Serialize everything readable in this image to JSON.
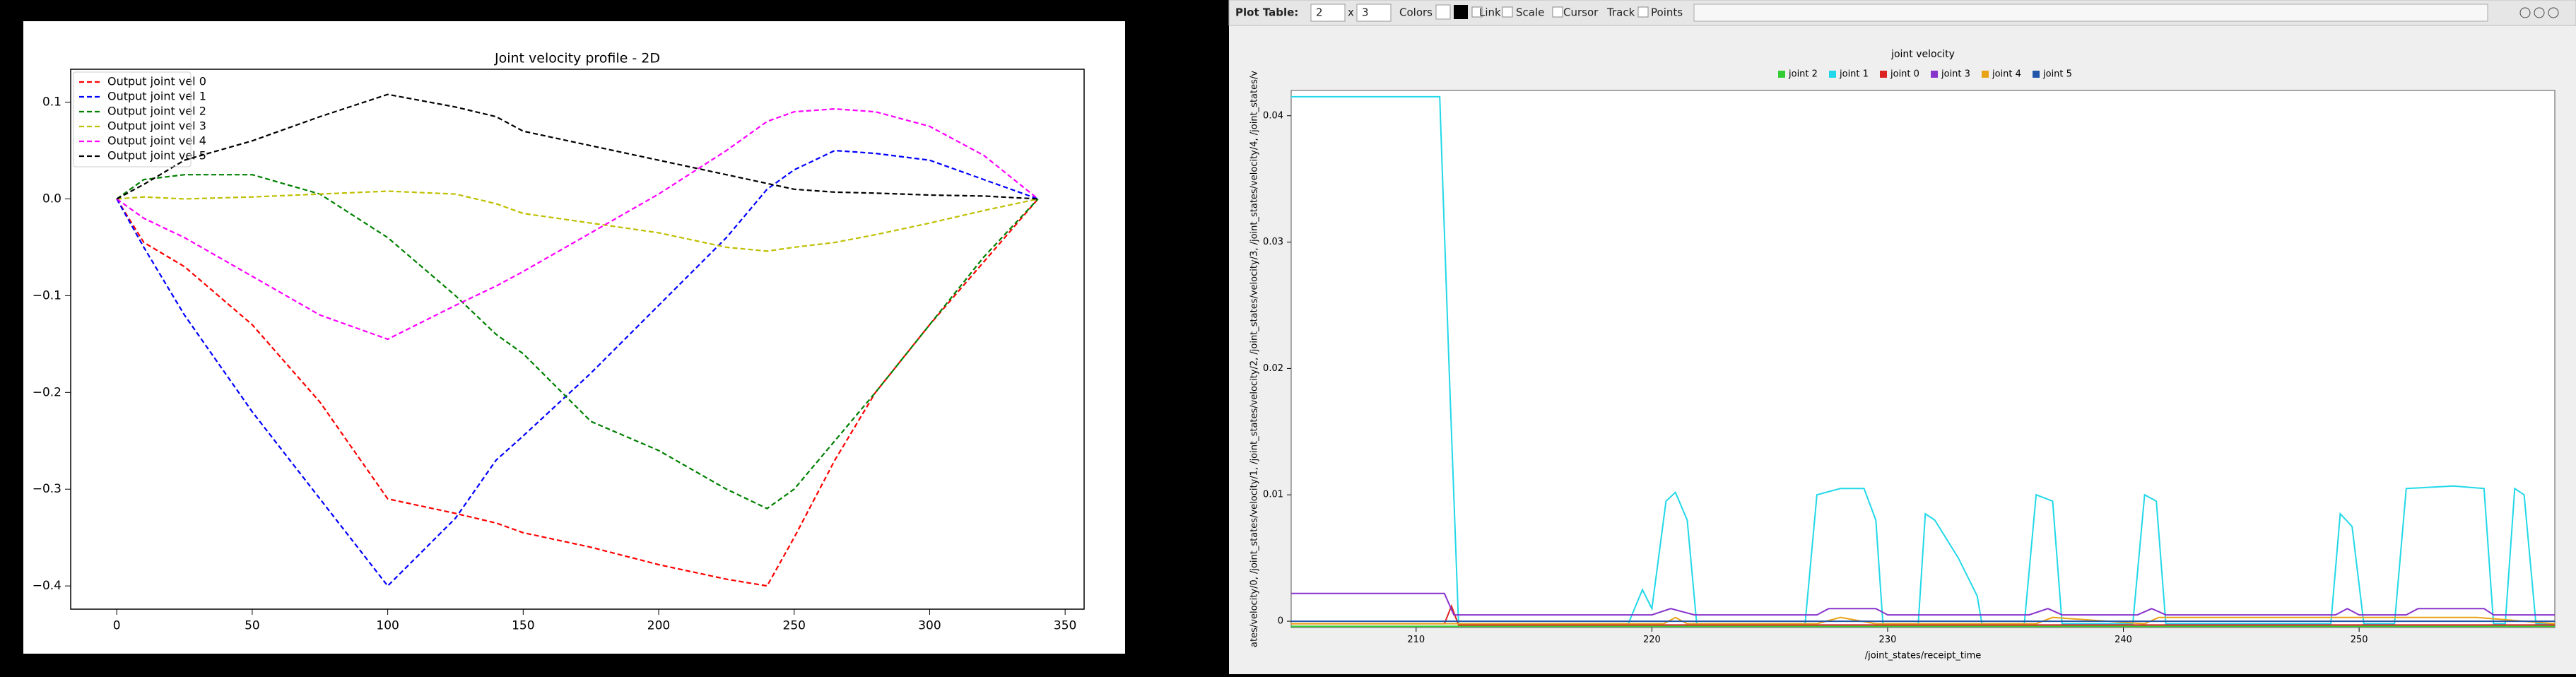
{
  "chart_data": [
    {
      "type": "line",
      "title": "Joint velocity profile - 2D",
      "legend": "upper left",
      "dashed": true,
      "x": [
        0,
        10,
        25,
        50,
        75,
        100,
        125,
        140,
        150,
        175,
        200,
        225,
        240,
        250,
        265,
        280,
        300,
        320,
        340
      ],
      "series": [
        {
          "name": "Output joint vel 0",
          "color": "#ff0000",
          "values": [
            0,
            -0.045,
            -0.07,
            -0.13,
            -0.21,
            -0.31,
            -0.325,
            -0.335,
            -0.345,
            -0.36,
            -0.378,
            -0.393,
            -0.4,
            -0.35,
            -0.27,
            -0.2,
            -0.13,
            -0.065,
            0
          ]
        },
        {
          "name": "Output joint vel 1",
          "color": "#0000ff",
          "values": [
            0,
            -0.05,
            -0.12,
            -0.22,
            -0.31,
            -0.4,
            -0.33,
            -0.27,
            -0.245,
            -0.18,
            -0.11,
            -0.04,
            0.01,
            0.03,
            0.05,
            0.047,
            0.04,
            0.02,
            0
          ]
        },
        {
          "name": "Output joint vel 2",
          "color": "#008000",
          "values": [
            0,
            0.02,
            0.025,
            0.025,
            0.005,
            -0.04,
            -0.1,
            -0.14,
            -0.16,
            -0.23,
            -0.26,
            -0.3,
            -0.32,
            -0.3,
            -0.25,
            -0.2,
            -0.13,
            -0.06,
            0
          ]
        },
        {
          "name": "Output joint vel 3",
          "color": "#bfbf00",
          "values": [
            0,
            0.002,
            0,
            0.002,
            0.005,
            0.008,
            0.005,
            -0.005,
            -0.015,
            -0.025,
            -0.035,
            -0.05,
            -0.054,
            -0.05,
            -0.045,
            -0.037,
            -0.025,
            -0.012,
            0
          ]
        },
        {
          "name": "Output joint vel 4",
          "color": "#ff00ff",
          "values": [
            0,
            -0.02,
            -0.04,
            -0.08,
            -0.12,
            -0.145,
            -0.11,
            -0.09,
            -0.075,
            -0.035,
            0.005,
            0.05,
            0.08,
            0.09,
            0.093,
            0.09,
            0.075,
            0.045,
            0
          ]
        },
        {
          "name": "Output joint vel 5",
          "color": "#000000",
          "values": [
            0,
            0.015,
            0.04,
            0.06,
            0.085,
            0.108,
            0.095,
            0.085,
            0.07,
            0.055,
            0.04,
            0.025,
            0.016,
            0.01,
            0.007,
            0.006,
            0.004,
            0.003,
            0
          ]
        }
      ],
      "xlim": [
        -17,
        357
      ],
      "ylim": [
        -0.424,
        0.134
      ],
      "xticks": [
        0,
        50,
        100,
        150,
        200,
        250,
        300,
        350
      ],
      "yticks": [
        {
          "value": -0.4,
          "label": "−0.4"
        },
        {
          "value": -0.3,
          "label": "−0.3"
        },
        {
          "value": -0.2,
          "label": "−0.2"
        },
        {
          "value": -0.1,
          "label": "−0.1"
        },
        {
          "value": 0,
          "label": "0.0"
        },
        0.1
      ]
    },
    {
      "type": "line",
      "title": "joint velocity",
      "x_label": "/joint_states/receipt_time",
      "y_label": "ates/velocity/0, /joint_states/velocity/1, /joint_states/velocity/2, /joint_states/velocity/3, /joint_states/velocity/4, /joint_states/v",
      "legend": "top center",
      "dashed": false,
      "series": [
        {
          "name": "joint 2",
          "color": "#33cc33",
          "x": [
            204.7,
            211.8,
            258.3
          ],
          "values": [
            -0.0004,
            -0.0004,
            -0.0004
          ]
        },
        {
          "name": "joint 1",
          "color": "#22d8e8",
          "x": [
            204.7,
            211,
            211.4,
            211.8,
            219,
            219.6,
            220,
            220.6,
            221,
            221.5,
            221.9,
            226.5,
            227,
            228,
            229,
            229.5,
            229.8,
            231.3,
            231.6,
            232,
            233,
            233.8,
            234,
            235.8,
            236.3,
            237,
            237.4,
            240.4,
            240.9,
            241.4,
            241.8,
            248.8,
            249.2,
            249.7,
            250.2,
            251.5,
            252,
            254,
            255.3,
            255.7,
            256.2,
            256.6,
            257,
            257.5,
            258.3
          ],
          "values": [
            0.0415,
            0.0415,
            0.02,
            -0.0002,
            -0.0002,
            0.0025,
            0.001,
            0.0095,
            0.0102,
            0.008,
            -0.0002,
            -0.0002,
            0.01,
            0.0105,
            0.0105,
            0.008,
            -0.0002,
            -0.0002,
            0.0085,
            0.008,
            0.005,
            0.002,
            -0.0002,
            -0.0002,
            0.01,
            0.0095,
            -0.0002,
            -0.0002,
            0.01,
            0.0095,
            -0.0002,
            -0.0002,
            0.0085,
            0.0075,
            -0.0002,
            -0.0002,
            0.0105,
            0.0107,
            0.0105,
            -0.0002,
            -0.0002,
            0.0105,
            0.01,
            -0.0002,
            -0.0002
          ]
        },
        {
          "name": "joint 0",
          "color": "#dd2222",
          "x": [
            204.7,
            211.2,
            211.5,
            211.8,
            258.3
          ],
          "values": [
            -0.0002,
            -0.0002,
            0.0012,
            -0.0003,
            -0.0003
          ]
        },
        {
          "name": "joint 3",
          "color": "#8833cc",
          "x": [
            204.7,
            211.2,
            211.6,
            220,
            220.8,
            221.8,
            227,
            227.5,
            229.5,
            230,
            236,
            236.8,
            237.4,
            240.6,
            241.2,
            241.8,
            249,
            249.5,
            250,
            252,
            252.5,
            255.3,
            255.7,
            258.3
          ],
          "values": [
            0.0022,
            0.0022,
            0.0005,
            0.0005,
            0.001,
            0.0005,
            0.0005,
            0.001,
            0.001,
            0.0005,
            0.0005,
            0.001,
            0.0005,
            0.0005,
            0.001,
            0.0005,
            0.0005,
            0.001,
            0.0005,
            0.0005,
            0.001,
            0.001,
            0.0005,
            0.0005
          ]
        },
        {
          "name": "joint 4",
          "color": "#e8a317",
          "x": [
            204.7,
            220.5,
            221,
            221.5,
            227,
            228,
            229.5,
            236.3,
            237,
            240.9,
            241.5,
            252,
            255,
            258.3
          ],
          "values": [
            -0.0002,
            -0.0002,
            0.0003,
            -0.0002,
            -0.0002,
            0.0003,
            -0.0002,
            -0.0002,
            0.0003,
            -0.0002,
            0.0003,
            0.0003,
            0.0003,
            -0.0002
          ]
        },
        {
          "name": "joint 5",
          "color": "#2255aa",
          "x": [
            204.7,
            258.3
          ],
          "values": [
            0,
            0
          ]
        }
      ],
      "xlim": [
        204.7,
        258.3
      ],
      "ylim": [
        -0.0005,
        0.042
      ],
      "xticks": [
        210,
        220,
        230,
        240,
        250
      ],
      "yticks": [
        0,
        0.01,
        0.02,
        0.03,
        0.04
      ]
    }
  ],
  "toolbar": {
    "label": "Plot Table:",
    "rows": "2",
    "separator": "x",
    "cols": "3",
    "colors": "Colors",
    "link": "Link",
    "scale": "Scale",
    "cursor": "Cursor",
    "track": "Track",
    "points": "Points"
  }
}
